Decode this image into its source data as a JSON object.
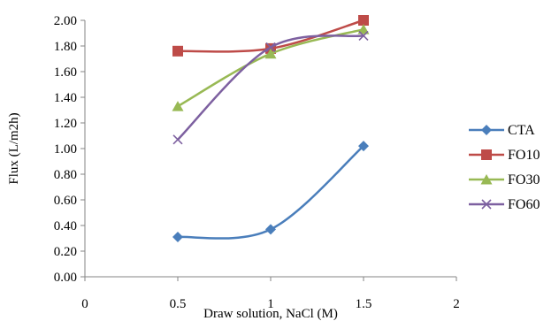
{
  "chart_data": {
    "type": "line",
    "xlabel": "Draw solution, NaCl (M)",
    "ylabel": "Flux (L/m2h)",
    "xlim": [
      0,
      2
    ],
    "ylim": [
      0,
      2
    ],
    "x_ticks": [
      "0",
      "0.5",
      "1",
      "1.5",
      "2"
    ],
    "y_ticks": [
      "0.00",
      "0.20",
      "0.40",
      "0.60",
      "0.80",
      "1.00",
      "1.20",
      "1.40",
      "1.60",
      "1.80",
      "2.00"
    ],
    "grid": false,
    "legend_position": "right",
    "series": [
      {
        "name": "CTA",
        "x": [
          0.5,
          1,
          1.5
        ],
        "values": [
          0.31,
          0.37,
          1.02
        ],
        "color": "#4a7ebb",
        "marker": "diamond"
      },
      {
        "name": "FO10",
        "x": [
          0.5,
          1,
          1.5
        ],
        "values": [
          1.76,
          1.78,
          2.0
        ],
        "color": "#be4b48",
        "marker": "square"
      },
      {
        "name": "FO30",
        "x": [
          0.5,
          1,
          1.5
        ],
        "values": [
          1.33,
          1.74,
          1.93
        ],
        "color": "#98b954",
        "marker": "triangle"
      },
      {
        "name": "FO60",
        "x": [
          0.5,
          1,
          1.5
        ],
        "values": [
          1.07,
          1.79,
          1.88
        ],
        "color": "#7d60a0",
        "marker": "x"
      }
    ]
  }
}
